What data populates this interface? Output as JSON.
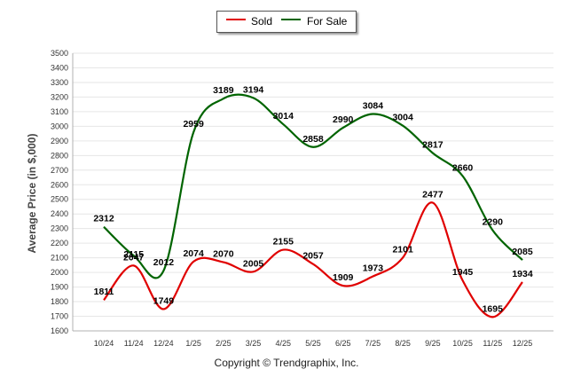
{
  "chart_data": {
    "type": "line",
    "title": "",
    "xlabel": "",
    "ylabel": "Average Price (in $,000)",
    "ylim": [
      1600,
      3500
    ],
    "y_ticks": [
      1600,
      1700,
      1800,
      1900,
      2000,
      2100,
      2200,
      2300,
      2400,
      2500,
      2600,
      2700,
      2800,
      2900,
      3000,
      3100,
      3200,
      3300,
      3400,
      3500
    ],
    "categories": [
      "10/24",
      "11/24",
      "12/24",
      "1/25",
      "2/25",
      "3/25",
      "4/25",
      "5/25",
      "6/25",
      "7/25",
      "8/25",
      "9/25",
      "10/25",
      "11/25",
      "12/25"
    ],
    "series": [
      {
        "name": "Sold",
        "color": "#e00000",
        "values": [
          1811,
          2047,
          1749,
          2074,
          2070,
          2005,
          2155,
          2057,
          1909,
          1973,
          2101,
          2477,
          1945,
          1695,
          1934
        ]
      },
      {
        "name": "For Sale",
        "color": "#006400",
        "values": [
          2312,
          2115,
          2012,
          2959,
          3189,
          3194,
          3014,
          2858,
          2990,
          3084,
          3004,
          2817,
          2660,
          2290,
          2085
        ]
      }
    ],
    "legend_position": "top-center",
    "grid": true
  },
  "legend": {
    "sold_label": "Sold",
    "forsale_label": "For Sale"
  },
  "footer": {
    "copyright": "Copyright © Trendgraphix, Inc."
  }
}
